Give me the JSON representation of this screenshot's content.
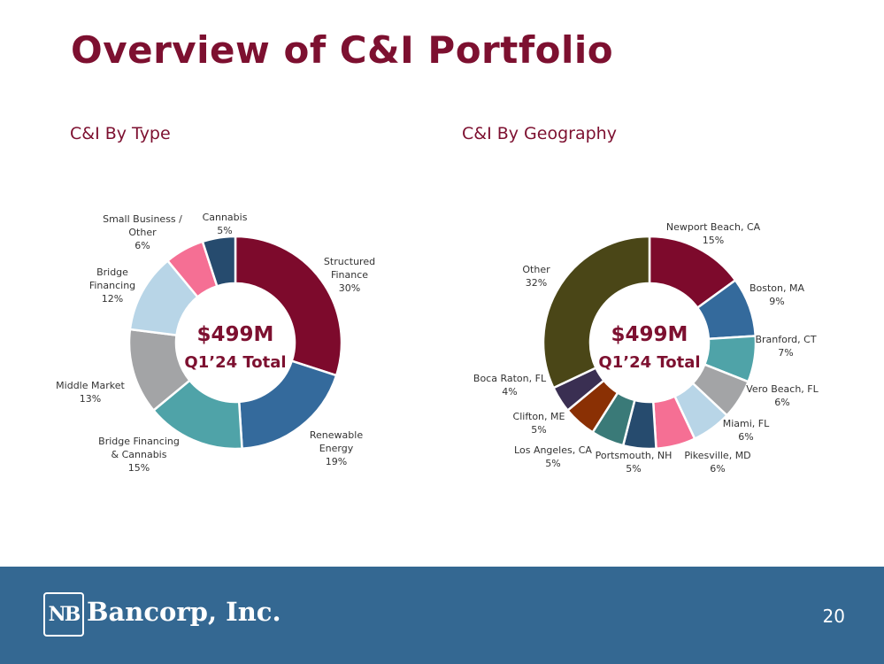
{
  "page": {
    "title": "Overview of C&I Portfolio",
    "page_number": "20"
  },
  "footer": {
    "logo_mark": "NB",
    "company": "Bancorp, Inc.",
    "background": "#346892"
  },
  "chart_data": [
    {
      "type": "pie",
      "title": "C&I By Type",
      "center_value": "$499M",
      "center_label": "Q1’24 Total",
      "slices": [
        {
          "label": [
            "Structured",
            "Finance"
          ],
          "pct_label": "30%",
          "value": 30,
          "color": "#7d0a2c"
        },
        {
          "label": [
            "Renewable",
            "Energy"
          ],
          "pct_label": "19%",
          "value": 19,
          "color": "#346a9c"
        },
        {
          "label": [
            "Bridge Financing",
            "& Cannabis"
          ],
          "pct_label": "15%",
          "value": 15,
          "color": "#4fa3a8"
        },
        {
          "label": [
            "Middle Market"
          ],
          "pct_label": "13%",
          "value": 13,
          "color": "#a3a4a6"
        },
        {
          "label": [
            "Bridge",
            "Financing"
          ],
          "pct_label": "12%",
          "value": 12,
          "color": "#b8d5e7"
        },
        {
          "label": [
            "Small Business /",
            "Other"
          ],
          "pct_label": "6%",
          "value": 6,
          "color": "#f56f94"
        },
        {
          "label": [
            "Cannabis"
          ],
          "pct_label": "5%",
          "value": 5,
          "color": "#264b6e"
        }
      ]
    },
    {
      "type": "pie",
      "title": "C&I By Geography",
      "center_value": "$499M",
      "center_label": "Q1’24 Total",
      "slices": [
        {
          "label": [
            "Newport Beach, CA"
          ],
          "pct_label": "15%",
          "value": 15,
          "color": "#7d0a2c"
        },
        {
          "label": [
            "Boston, MA"
          ],
          "pct_label": "9%",
          "value": 9,
          "color": "#346a9c"
        },
        {
          "label": [
            "Branford, CT"
          ],
          "pct_label": "7%",
          "value": 7,
          "color": "#4fa3a8"
        },
        {
          "label": [
            "Vero Beach, FL"
          ],
          "pct_label": "6%",
          "value": 6,
          "color": "#a3a4a6"
        },
        {
          "label": [
            "Miami, FL"
          ],
          "pct_label": "6%",
          "value": 6,
          "color": "#b8d5e7"
        },
        {
          "label": [
            "Pikesville, MD"
          ],
          "pct_label": "6%",
          "value": 6,
          "color": "#f56f94"
        },
        {
          "label": [
            "Portsmouth, NH"
          ],
          "pct_label": "5%",
          "value": 5,
          "color": "#264b6e"
        },
        {
          "label": [
            "Los Angeles, CA"
          ],
          "pct_label": "5%",
          "value": 5,
          "color": "#3a7a78"
        },
        {
          "label": [
            "Clifton, ME"
          ],
          "pct_label": "5%",
          "value": 5,
          "color": "#8a3004"
        },
        {
          "label": [
            "Boca Raton, FL"
          ],
          "pct_label": "4%",
          "value": 4,
          "color": "#3a2f52"
        },
        {
          "label": [
            "Other"
          ],
          "pct_label": "32%",
          "value": 32,
          "color": "#4a4617"
        }
      ]
    }
  ]
}
